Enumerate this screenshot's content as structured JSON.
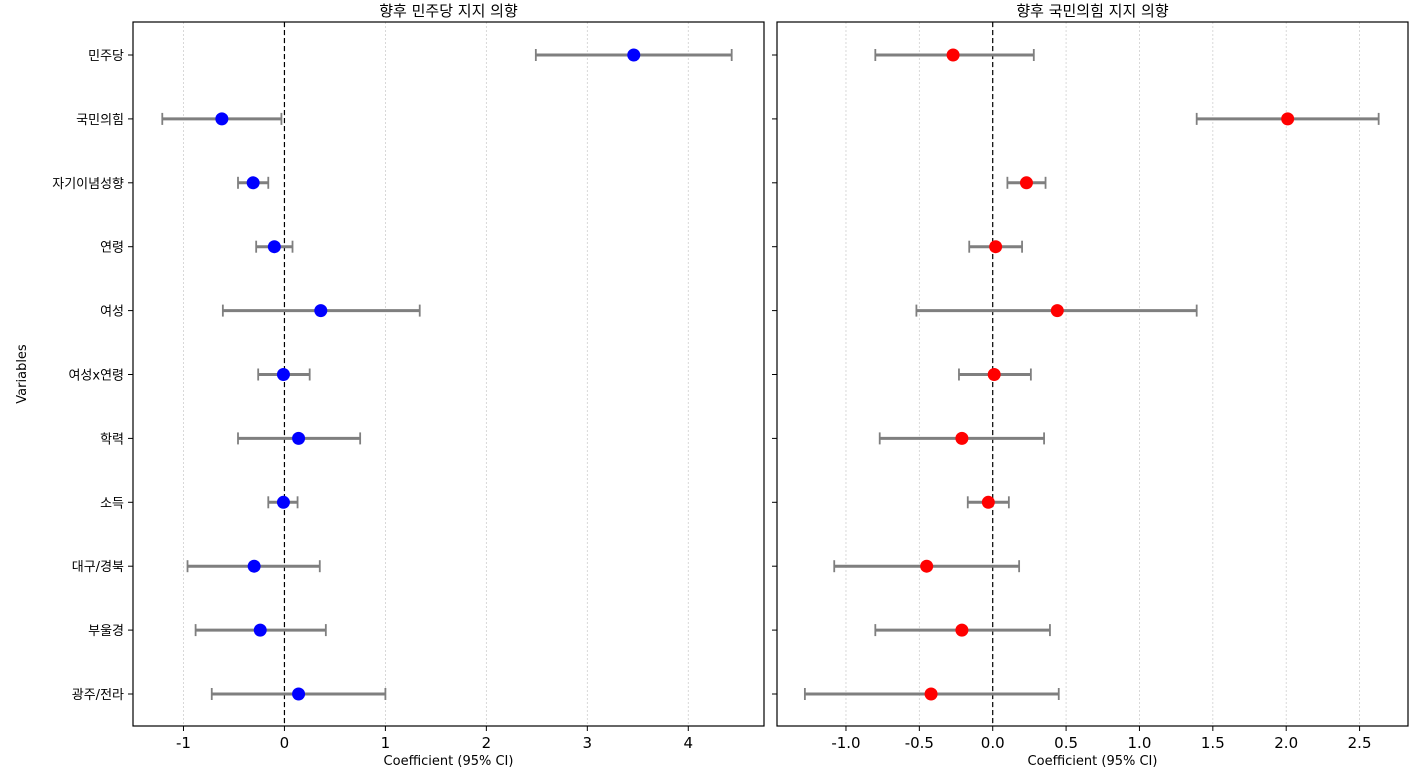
{
  "chart_data": [
    {
      "type": "scatter",
      "subtype": "coefficient-plot",
      "title": "향후 민주당 지지 의향",
      "xlabel": "Coefficient (95% CI)",
      "ylabel": "Variables",
      "xlim": [
        -1.5,
        4.75
      ],
      "xticks": [
        -1,
        0,
        1,
        2,
        3,
        4
      ],
      "xtick_labels": [
        "-1",
        "0",
        "1",
        "2",
        "3",
        "4"
      ],
      "grid": "vertical",
      "reference_line": 0,
      "point_color": "#0000ff",
      "categories": [
        "민주당",
        "국민의힘",
        "자기이념성향",
        "연령",
        "여성",
        "여성x연령",
        "학력",
        "소득",
        "대구/경북",
        "부울경",
        "광주/전라"
      ],
      "estimates": [
        3.46,
        -0.62,
        -0.31,
        -0.1,
        0.36,
        -0.01,
        0.14,
        -0.01,
        -0.3,
        -0.24,
        0.14
      ],
      "ci_low": [
        2.49,
        -1.21,
        -0.46,
        -0.28,
        -0.61,
        -0.26,
        -0.46,
        -0.16,
        -0.96,
        -0.88,
        -0.72
      ],
      "ci_high": [
        4.43,
        -0.03,
        -0.16,
        0.08,
        1.34,
        0.25,
        0.75,
        0.13,
        0.35,
        0.41,
        1.0
      ]
    },
    {
      "type": "scatter",
      "subtype": "coefficient-plot",
      "title": "향후 국민의힘 지지 의향",
      "xlabel": "Coefficient (95% CI)",
      "ylabel": "",
      "xlim": [
        -1.47,
        2.83
      ],
      "xticks": [
        -1.0,
        -0.5,
        0.0,
        0.5,
        1.0,
        1.5,
        2.0,
        2.5
      ],
      "xtick_labels": [
        "-1.0",
        "-0.5",
        "0.0",
        "0.5",
        "1.0",
        "1.5",
        "2.0",
        "2.5"
      ],
      "grid": "vertical",
      "reference_line": 0,
      "point_color": "#ff0000",
      "categories": [
        "민주당",
        "국민의힘",
        "자기이념성향",
        "연령",
        "여성",
        "여성x연령",
        "학력",
        "소득",
        "대구/경북",
        "부울경",
        "광주/전라"
      ],
      "estimates": [
        -0.27,
        2.01,
        0.23,
        0.02,
        0.44,
        0.01,
        -0.21,
        -0.03,
        -0.45,
        -0.21,
        -0.42
      ],
      "ci_low": [
        -0.8,
        1.39,
        0.1,
        -0.16,
        -0.52,
        -0.23,
        -0.77,
        -0.17,
        -1.08,
        -0.8,
        -1.28
      ],
      "ci_high": [
        0.28,
        2.63,
        0.36,
        0.2,
        1.39,
        0.26,
        0.35,
        0.11,
        0.18,
        0.39,
        0.45
      ]
    }
  ]
}
